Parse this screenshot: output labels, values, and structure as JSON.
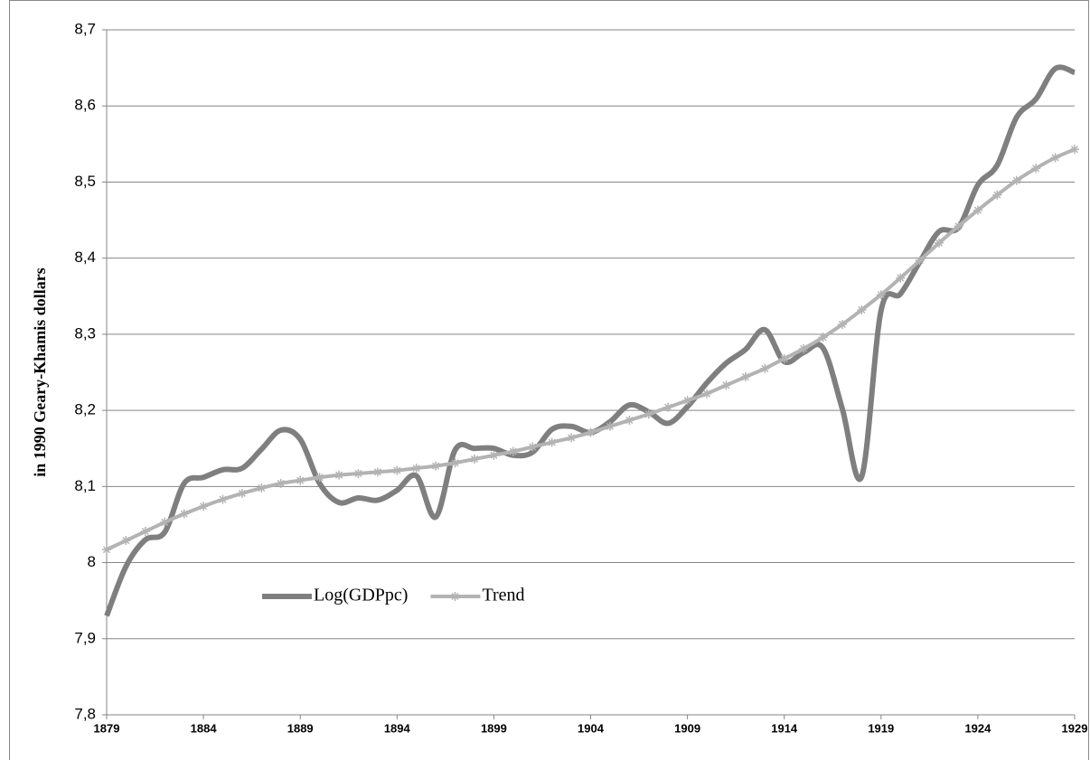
{
  "chart_data": {
    "type": "line",
    "y_label": "in 1990 Geary-Khamis dollars",
    "x": [
      1879,
      1880,
      1881,
      1882,
      1883,
      1884,
      1885,
      1886,
      1887,
      1888,
      1889,
      1890,
      1891,
      1892,
      1893,
      1894,
      1895,
      1896,
      1897,
      1898,
      1899,
      1900,
      1901,
      1902,
      1903,
      1904,
      1905,
      1906,
      1907,
      1908,
      1909,
      1910,
      1911,
      1912,
      1913,
      1914,
      1915,
      1916,
      1917,
      1918,
      1919,
      1920,
      1921,
      1922,
      1923,
      1924,
      1925,
      1926,
      1927,
      1928,
      1929
    ],
    "series": [
      {
        "name": "Log(GDPpc)",
        "color": "#7f7f7f",
        "marker": "none",
        "values": [
          7.93,
          7.995,
          8.03,
          8.04,
          8.104,
          8.112,
          8.122,
          8.124,
          8.149,
          8.174,
          8.162,
          8.104,
          8.079,
          8.085,
          8.082,
          8.095,
          8.114,
          8.06,
          8.148,
          8.15,
          8.15,
          8.141,
          8.145,
          8.175,
          8.179,
          8.171,
          8.185,
          8.207,
          8.198,
          8.183,
          8.205,
          8.236,
          8.262,
          8.28,
          8.306,
          8.264,
          8.276,
          8.282,
          8.202,
          8.113,
          8.331,
          8.353,
          8.395,
          8.435,
          8.44,
          8.496,
          8.522,
          8.585,
          8.609,
          8.649,
          8.644
        ]
      },
      {
        "name": "Trend",
        "color": "#b3b3b3",
        "marker": "asterisk",
        "values": [
          8.017,
          8.029,
          8.041,
          8.053,
          8.064,
          8.074,
          8.083,
          8.091,
          8.098,
          8.104,
          8.108,
          8.112,
          8.115,
          8.117,
          8.119,
          8.121,
          8.124,
          8.127,
          8.131,
          8.136,
          8.141,
          8.146,
          8.152,
          8.158,
          8.164,
          8.171,
          8.179,
          8.187,
          8.195,
          8.204,
          8.213,
          8.222,
          8.233,
          8.244,
          8.255,
          8.268,
          8.281,
          8.296,
          8.313,
          8.332,
          8.352,
          8.374,
          8.397,
          8.42,
          8.442,
          8.463,
          8.483,
          8.502,
          8.518,
          8.532,
          8.543
        ]
      }
    ],
    "xlim": [
      1879,
      1929
    ],
    "xticks": [
      1879,
      1884,
      1889,
      1894,
      1899,
      1904,
      1909,
      1914,
      1919,
      1924,
      1929
    ],
    "ylim": [
      7.8,
      8.7
    ],
    "yticks": [
      {
        "value": 7.8,
        "label": "7,8"
      },
      {
        "value": 7.9,
        "label": "7,9"
      },
      8,
      {
        "value": 8.1,
        "label": "8,1"
      },
      {
        "value": 8.2,
        "label": "8,2"
      },
      {
        "value": 8.3,
        "label": "8,3"
      },
      {
        "value": 8.4,
        "label": "8,4"
      },
      {
        "value": 8.5,
        "label": "8,5"
      },
      {
        "value": 8.6,
        "label": "8,6"
      },
      {
        "value": 8.7,
        "label": "8,7"
      }
    ],
    "grid": true,
    "smooth": true,
    "legend": "lower-left"
  }
}
